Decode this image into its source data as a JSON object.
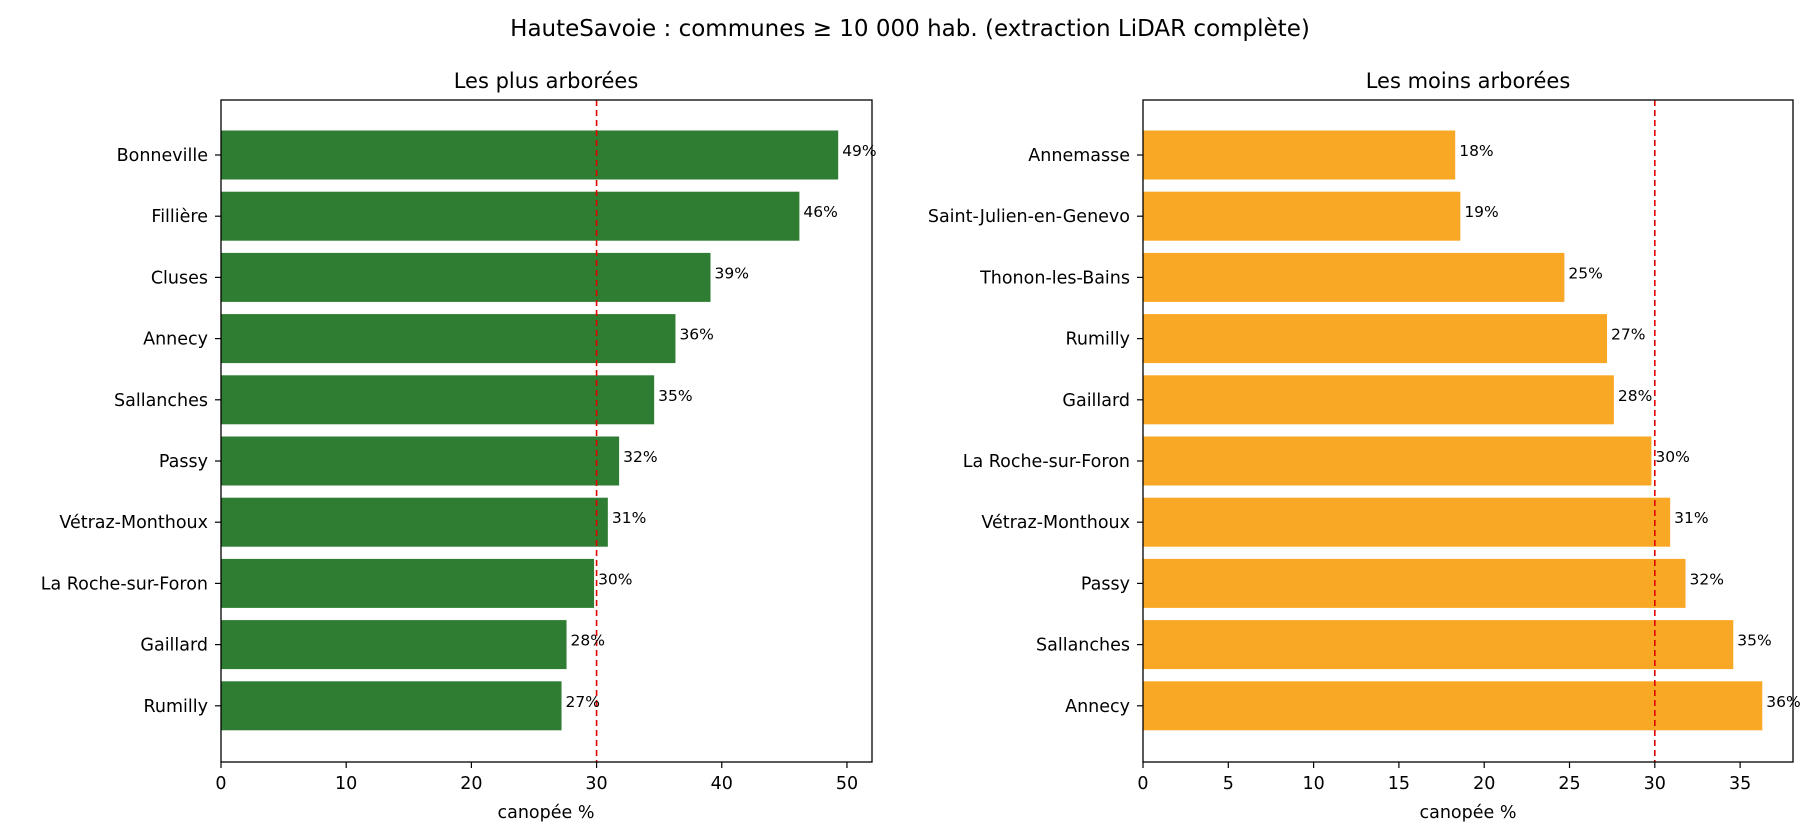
{
  "figure_title": "HauteSavoie : communes ≥ 10 000 hab. (extraction LiDAR complète)",
  "chart_data": [
    {
      "type": "bar",
      "orientation": "horizontal",
      "title": "Les plus arborées",
      "xlabel": "canopée %",
      "ylabel": "",
      "xlim": [
        0,
        52
      ],
      "xticks": [
        0,
        10,
        20,
        30,
        40,
        50
      ],
      "reference_line": 30,
      "color": "#2e7d32",
      "label_suffix": "%",
      "grid": false,
      "categories": [
        "Bonneville",
        "Fillière",
        "Cluses",
        "Annecy",
        "Sallanches",
        "Passy",
        "Vétraz-Monthoux",
        "La Roche-sur-Foron",
        "Gaillard",
        "Rumilly"
      ],
      "values": [
        49.3,
        46.2,
        39.1,
        36.3,
        34.6,
        31.8,
        30.9,
        29.8,
        27.6,
        27.2
      ],
      "value_labels": [
        "49%",
        "46%",
        "39%",
        "36%",
        "35%",
        "32%",
        "31%",
        "30%",
        "28%",
        "27%"
      ]
    },
    {
      "type": "bar",
      "orientation": "horizontal",
      "title": "Les moins arborées",
      "xlabel": "canopée %",
      "ylabel": "",
      "xlim": [
        0,
        38.1
      ],
      "xticks": [
        0,
        5,
        10,
        15,
        20,
        25,
        30,
        35
      ],
      "reference_line": 30,
      "color": "#f9a825",
      "label_suffix": "%",
      "grid": false,
      "categories": [
        "Annemasse",
        "Saint-Julien-en-Genevo",
        "Thonon-les-Bains",
        "Rumilly",
        "Gaillard",
        "La Roche-sur-Foron",
        "Vétraz-Monthoux",
        "Passy",
        "Sallanches",
        "Annecy"
      ],
      "values": [
        18.3,
        18.6,
        24.7,
        27.2,
        27.6,
        29.8,
        30.9,
        31.8,
        34.6,
        36.3
      ],
      "value_labels": [
        "18%",
        "19%",
        "25%",
        "27%",
        "28%",
        "30%",
        "31%",
        "32%",
        "35%",
        "36%"
      ]
    }
  ]
}
